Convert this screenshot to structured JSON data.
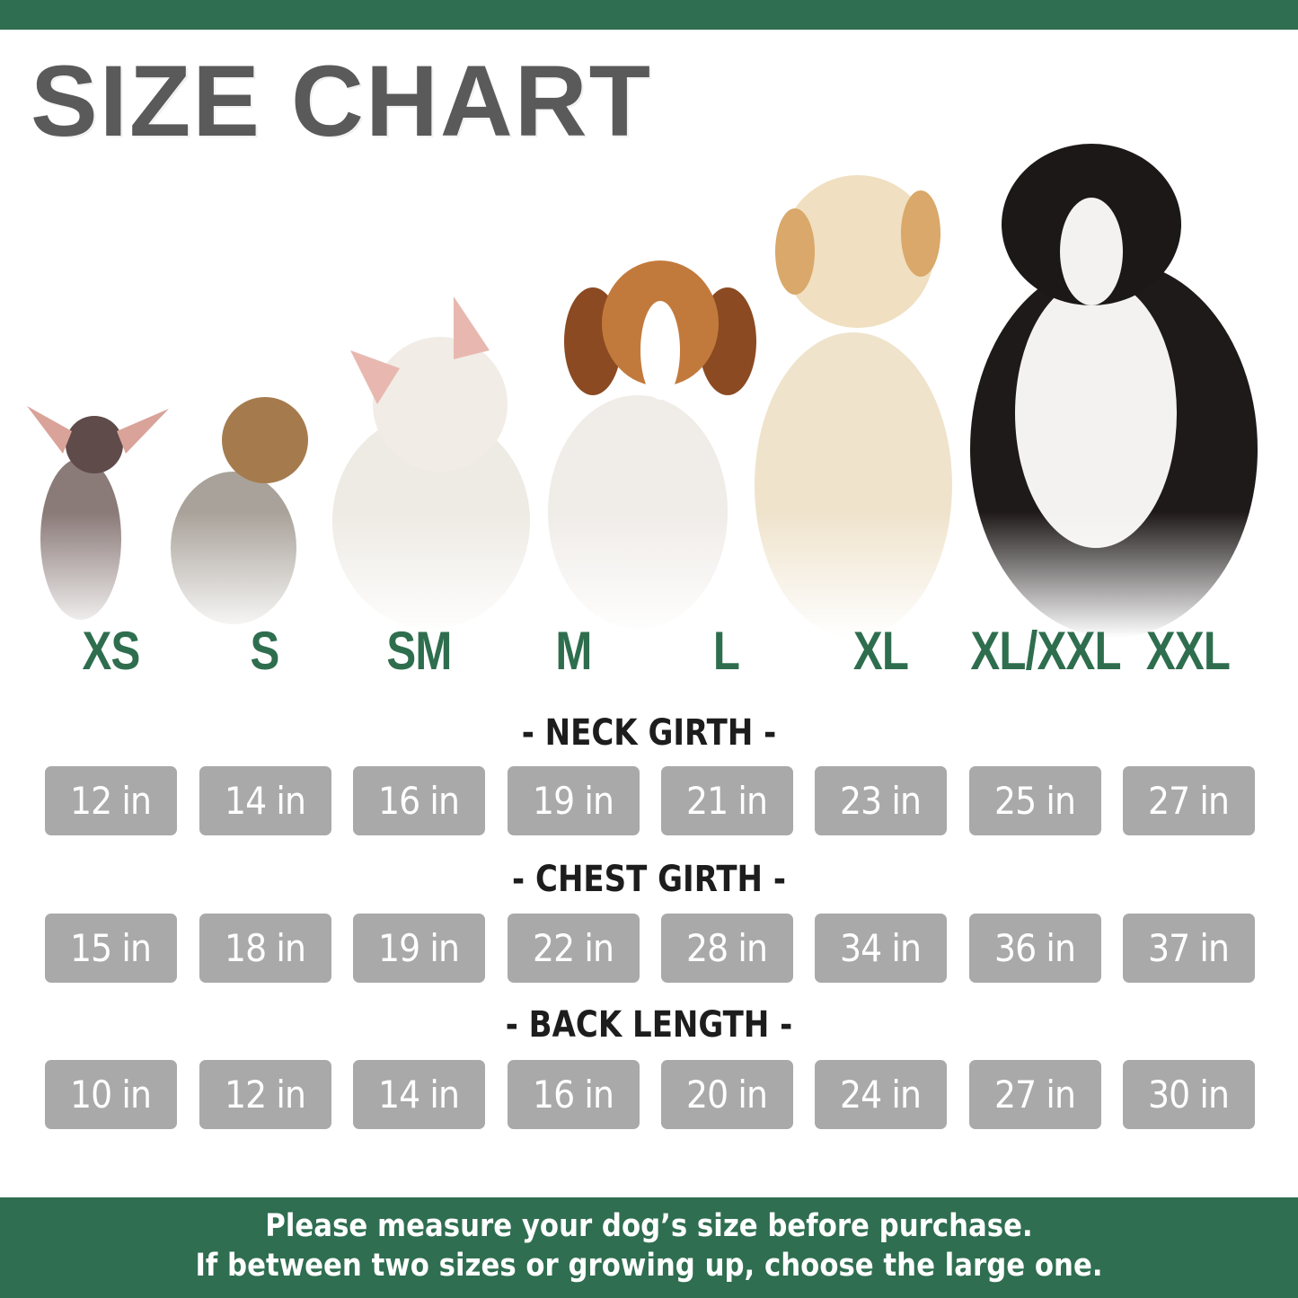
{
  "title": "SIZE CHART",
  "colors": {
    "brand_green": "#2f6e50",
    "label_green": "#2e6e4e",
    "cell_gray": "#a9a9a9",
    "title_gray": "#5a5a5a"
  },
  "sizes": [
    "XS",
    "S",
    "SM",
    "M",
    "L",
    "XL",
    "XL/XXL",
    "XXL"
  ],
  "rows": [
    {
      "heading": "- NECK GIRTH -",
      "values": [
        "12 in",
        "14 in",
        "16 in",
        "19 in",
        "21 in",
        "23 in",
        "25 in",
        "27 in"
      ]
    },
    {
      "heading": "- CHEST GIRTH -",
      "values": [
        "15 in",
        "18 in",
        "19 in",
        "22 in",
        "28 in",
        "34 in",
        "36 in",
        "37 in"
      ]
    },
    {
      "heading": "- BACK LENGTH -",
      "values": [
        "10 in",
        "12 in",
        "14 in",
        "16 in",
        "20 in",
        "24 in",
        "27 in",
        "30 in"
      ]
    }
  ],
  "footer": {
    "line1": "Please measure your dog’s size before purchase.",
    "line2": "If between two sizes or growing up, choose the large one."
  }
}
